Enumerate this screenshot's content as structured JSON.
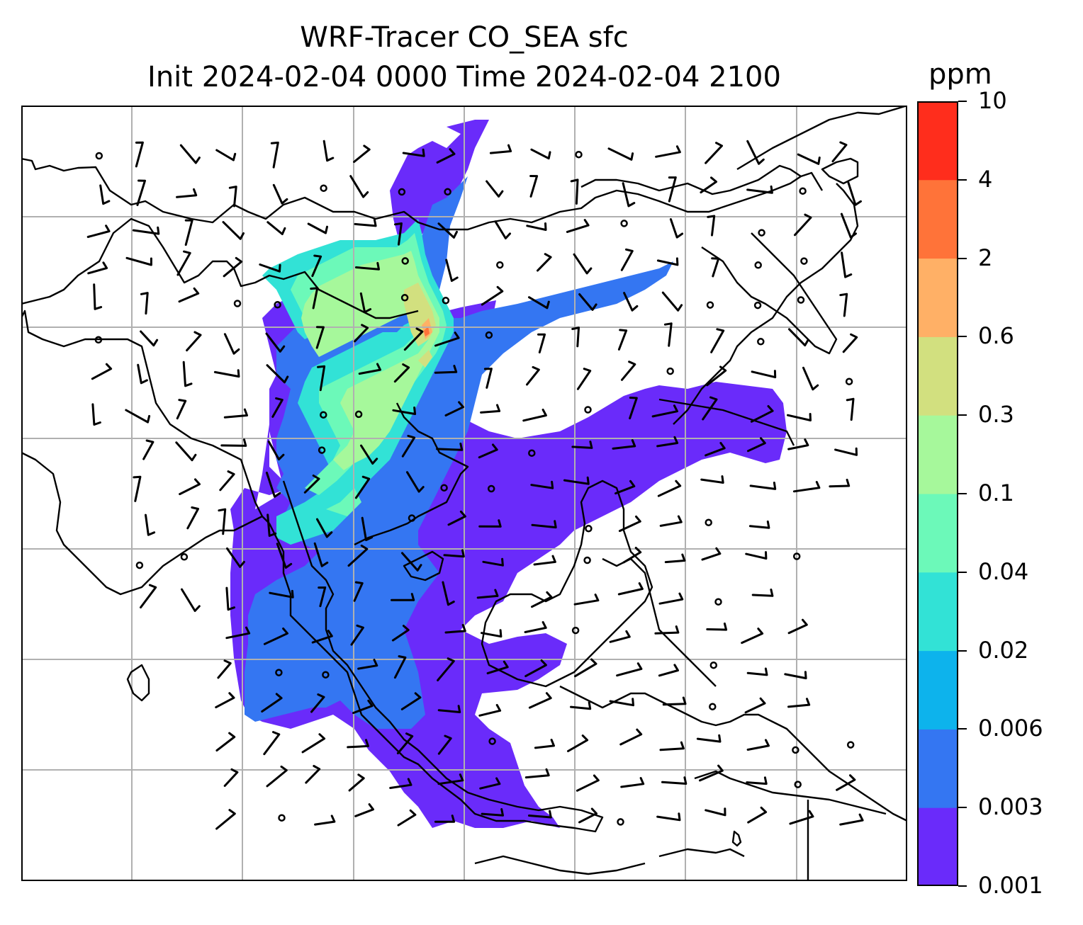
{
  "title": {
    "line1": "WRF-Tracer CO_SEA sfc",
    "line2": "Init 2024-02-04 0000 Time 2024-02-04 2100"
  },
  "colorbar": {
    "unit": "ppm",
    "levels": [
      "0.001",
      "0.003",
      "0.006",
      "0.02",
      "0.04",
      "0.1",
      "0.3",
      "0.6",
      "2",
      "4",
      "10"
    ],
    "colors": [
      "#6a2bfa",
      "#3476f2",
      "#0db3ec",
      "#32e2d6",
      "#6cf9b9",
      "#a6f89b",
      "#d2e07f",
      "#ffb066",
      "#ff7339",
      "#ff2d1c"
    ]
  },
  "map": {
    "coastline_color": "#000000",
    "grid_color": "#b0b0b0",
    "wind_barbs": true
  }
}
